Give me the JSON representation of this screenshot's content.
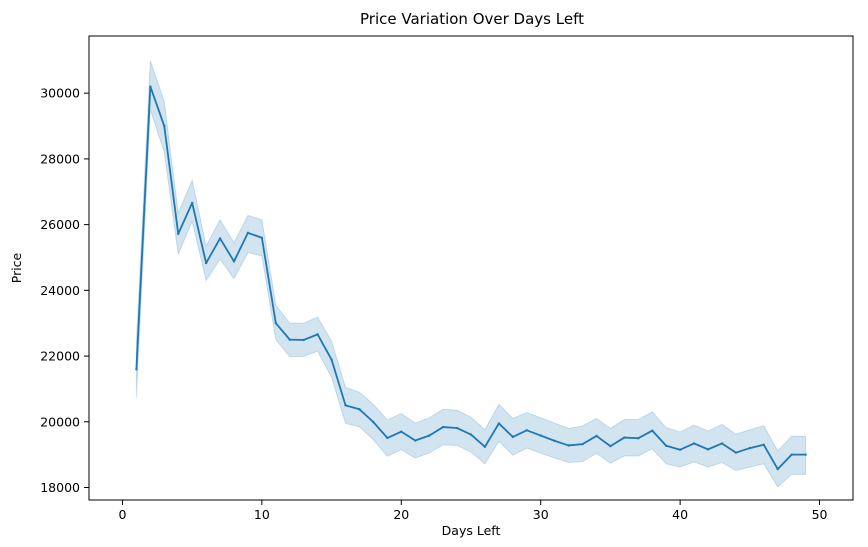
{
  "chart_data": {
    "type": "line",
    "title": "Price Variation Over Days Left",
    "xlabel": "Days Left",
    "ylabel": "Price",
    "xlim": [
      -2.4,
      52.4
    ],
    "ylim": [
      17620,
      31740
    ],
    "xticks": [
      0,
      10,
      20,
      30,
      40,
      50
    ],
    "yticks": [
      18000,
      20000,
      22000,
      24000,
      26000,
      28000,
      30000
    ],
    "grid": false,
    "legend": "none",
    "series": [
      {
        "x": [
          1,
          2,
          3,
          4,
          5,
          6,
          7,
          8,
          9,
          10,
          11,
          12,
          13,
          14,
          15,
          16,
          17,
          18,
          19,
          20,
          21,
          22,
          23,
          24,
          25,
          26,
          27,
          28,
          29,
          30,
          31,
          32,
          33,
          34,
          35,
          36,
          37,
          38,
          39,
          40,
          41,
          42,
          43,
          44,
          45,
          46,
          47,
          48,
          49
        ],
        "y": [
          21600,
          30200,
          29000,
          25720,
          26660,
          24830,
          25580,
          24880,
          25750,
          25600,
          23000,
          22500,
          22490,
          22660,
          21890,
          20500,
          20380,
          19990,
          19510,
          19700,
          19430,
          19580,
          19840,
          19810,
          19610,
          19240,
          19950,
          19540,
          19740,
          19580,
          19420,
          19280,
          19320,
          19570,
          19260,
          19520,
          19500,
          19730,
          19270,
          19150,
          19340,
          19160,
          19340,
          19060,
          19200,
          19300,
          18560,
          19000,
          19000
        ],
        "ci_low": [
          20750,
          29500,
          28200,
          25100,
          26100,
          24300,
          24950,
          24350,
          25150,
          25050,
          22500,
          21980,
          21990,
          22150,
          21350,
          19950,
          19850,
          19450,
          18950,
          19150,
          18900,
          19050,
          19300,
          19280,
          19080,
          18720,
          19410,
          18980,
          19200,
          19040,
          18900,
          18760,
          18790,
          19040,
          18740,
          18960,
          18960,
          19180,
          18720,
          18620,
          18780,
          18620,
          18760,
          18520,
          18620,
          18720,
          18020,
          18400,
          18400
        ],
        "ci_high": [
          22450,
          30990,
          29750,
          26350,
          27350,
          25350,
          26150,
          25450,
          26280,
          26150,
          23550,
          23000,
          23000,
          23190,
          22450,
          21050,
          20900,
          20530,
          20060,
          20250,
          19960,
          20120,
          20380,
          20350,
          20140,
          19760,
          20530,
          20100,
          20280,
          20120,
          19960,
          19800,
          19870,
          20100,
          19800,
          20070,
          20070,
          20300,
          19820,
          19690,
          19900,
          19720,
          19920,
          19620,
          19760,
          19880,
          19110,
          19560,
          19560
        ],
        "color": "#1f77b4",
        "ci_color": "#1f77b4"
      }
    ]
  }
}
